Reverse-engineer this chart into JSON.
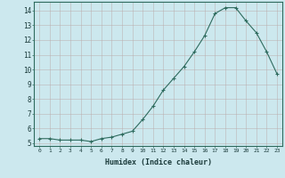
{
  "x": [
    0,
    1,
    2,
    3,
    4,
    5,
    6,
    7,
    8,
    9,
    10,
    11,
    12,
    13,
    14,
    15,
    16,
    17,
    18,
    19,
    20,
    21,
    22,
    23
  ],
  "y": [
    5.3,
    5.3,
    5.2,
    5.2,
    5.2,
    5.1,
    5.3,
    5.4,
    5.6,
    5.8,
    6.6,
    7.5,
    8.6,
    9.4,
    10.2,
    11.2,
    12.3,
    13.8,
    14.2,
    14.2,
    13.3,
    12.5,
    11.2,
    9.7
  ],
  "line_color": "#2e6b5e",
  "marker": "+",
  "background_color": "#cce8ee",
  "grid_color": "#b8d4da",
  "xlabel": "Humidex (Indice chaleur)",
  "ylim": [
    4.8,
    14.6
  ],
  "xlim": [
    -0.5,
    23.5
  ],
  "yticks": [
    5,
    6,
    7,
    8,
    9,
    10,
    11,
    12,
    13,
    14
  ],
  "xticks": [
    0,
    1,
    2,
    3,
    4,
    5,
    6,
    7,
    8,
    9,
    10,
    11,
    12,
    13,
    14,
    15,
    16,
    17,
    18,
    19,
    20,
    21,
    22,
    23
  ]
}
